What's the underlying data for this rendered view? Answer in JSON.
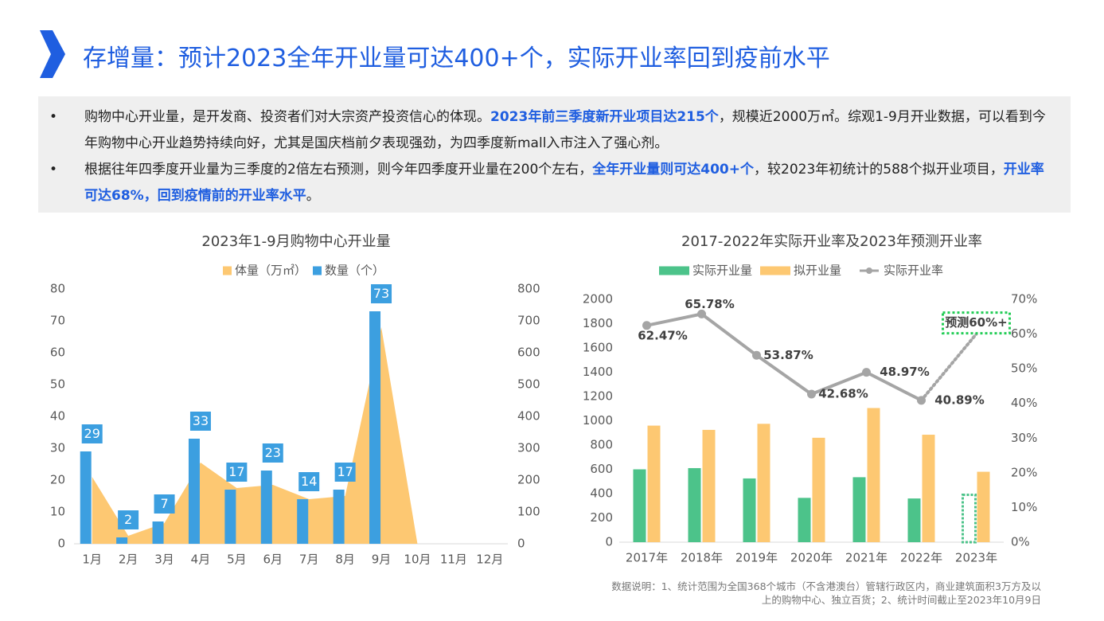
{
  "header": {
    "title": "存增量：预计2023全年开业量可达400+个，实际开业率回到疫前水平"
  },
  "bullets": [
    [
      {
        "text": "购物中心开业量，是开发商、投资者们对大宗资产投资信心的体现。"
      },
      {
        "text": "2023年前三季度新开业项目达215个",
        "strong": true
      },
      {
        "text": "，规模近2000万㎡。综观1-9月开业数据，可以看到今年购物中心开业趋势持续向好，尤其是国庆档前夕表现强劲，为四季度新mall入市注入了强心剂。"
      }
    ],
    [
      {
        "text": "根据往年四季度开业量为三季度的2倍左右预测，则今年四季度开业量在200个左右，"
      },
      {
        "text": "全年开业量则可达400+个",
        "strong": true
      },
      {
        "text": "，较2023年初统计的588个拟开业项目，"
      },
      {
        "text": "开业率可达68%，回到疫情前的开业率水平",
        "strong": true
      },
      {
        "text": "。"
      }
    ]
  ],
  "chart_data": [
    {
      "type": "bar",
      "title": "2023年1-9月购物中心开业量",
      "categories": [
        "1月",
        "2月",
        "3月",
        "4月",
        "5月",
        "6月",
        "7月",
        "8月",
        "9月",
        "10月",
        "11月",
        "12月"
      ],
      "series": [
        {
          "name": "体量（万㎡）",
          "type": "area",
          "axis": "y2",
          "color": "#fdc872",
          "values": [
            210,
            25,
            65,
            255,
            175,
            185,
            140,
            150,
            680,
            0,
            null,
            null
          ]
        },
        {
          "name": "数量（个）",
          "type": "bar",
          "color": "#3c9fe0",
          "values": [
            29,
            2,
            7,
            33,
            17,
            23,
            14,
            17,
            73,
            null,
            null,
            null
          ]
        }
      ],
      "ylim": [
        0,
        80
      ],
      "yticks": [
        0,
        10,
        20,
        30,
        40,
        50,
        60,
        70,
        80
      ],
      "y2lim": [
        0,
        800
      ],
      "y2ticks": [
        0,
        100,
        200,
        300,
        400,
        500,
        600,
        700,
        800
      ]
    },
    {
      "type": "bar",
      "title": "2017-2022年实际开业率及2023年预测开业率",
      "categories": [
        "2017年",
        "2018年",
        "2019年",
        "2020年",
        "2021年",
        "2022年",
        "2023年"
      ],
      "series": [
        {
          "name": "实际开业量",
          "type": "bar",
          "color": "#4cc38a",
          "values": [
            600,
            610,
            525,
            365,
            535,
            360,
            390
          ],
          "dashed": [
            false,
            false,
            false,
            false,
            false,
            false,
            true
          ]
        },
        {
          "name": "拟开业量",
          "type": "bar",
          "color": "#fdc872",
          "values": [
            960,
            925,
            975,
            860,
            1105,
            885,
            580
          ]
        },
        {
          "name": "实际开业率",
          "type": "line",
          "axis": "y2",
          "color": "#a5a5a5",
          "values": [
            62.47,
            65.78,
            53.87,
            42.68,
            48.97,
            40.89,
            60
          ],
          "value_labels": [
            "62.47%",
            "65.78%",
            "53.87%",
            "42.68%",
            "48.97%",
            "40.89%",
            "预测60%+"
          ],
          "dashed": [
            false,
            false,
            false,
            false,
            false,
            false,
            true
          ]
        }
      ],
      "ylim": [
        0,
        2000
      ],
      "yticks": [
        0,
        200,
        400,
        600,
        800,
        1000,
        1200,
        1400,
        1600,
        1800,
        2000
      ],
      "y2lim": [
        0,
        70
      ],
      "y2ticks": [
        {
          "value": 0,
          "label": "0%"
        },
        {
          "value": 10,
          "label": "10%"
        },
        {
          "value": 20,
          "label": "20%"
        },
        {
          "value": 30,
          "label": "30%"
        },
        {
          "value": 40,
          "label": "40%"
        },
        {
          "value": 50,
          "label": "50%"
        },
        {
          "value": 60,
          "label": "60%"
        },
        {
          "value": 70,
          "label": "70%"
        }
      ]
    }
  ],
  "footnote": "数据说明：1、统计范围为全国368个城市（不含港澳台）管辖行政区内，商业建筑面积3万方及以上的购物中心、独立百货；2、统计时间截止至2023年10月9日"
}
